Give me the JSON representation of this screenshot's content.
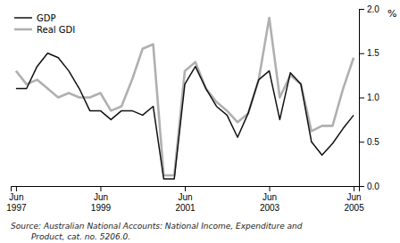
{
  "chart_data": {
    "type": "line",
    "y_label": "%",
    "annotations": [
      "Source: Australian National Accounts: National Income, Expenditure and",
      "        Product, cat. no. 5206.0."
    ],
    "categories": [
      "Jun\n1997",
      null,
      null,
      null,
      null,
      null,
      null,
      null,
      "Jun\n1999",
      null,
      null,
      null,
      null,
      null,
      null,
      null,
      "Jun\n2001",
      null,
      null,
      null,
      null,
      null,
      null,
      null,
      "Jun\n2003",
      null,
      null,
      null,
      null,
      null,
      null,
      null,
      "Jun\n2005"
    ],
    "series": [
      {
        "name": "GDP",
        "color": "#111111",
        "values": [
          1.1,
          1.1,
          1.35,
          1.5,
          1.45,
          1.3,
          1.1,
          0.85,
          0.85,
          0.75,
          0.85,
          0.85,
          0.8,
          0.9,
          0.08,
          0.08,
          1.15,
          1.35,
          1.1,
          0.9,
          0.8,
          0.55,
          0.82,
          1.2,
          1.3,
          0.75,
          1.28,
          1.15,
          0.5,
          0.35,
          0.48,
          0.65,
          0.8
        ]
      },
      {
        "name": "Real GDI",
        "color": "#b0b0b0",
        "values": [
          1.3,
          1.15,
          1.2,
          1.1,
          1.0,
          1.05,
          1.0,
          1.0,
          1.05,
          0.85,
          0.9,
          1.2,
          1.55,
          1.6,
          0.12,
          0.12,
          1.3,
          1.4,
          1.1,
          0.95,
          0.85,
          0.72,
          0.82,
          1.2,
          1.9,
          1.0,
          1.25,
          1.15,
          0.62,
          0.68,
          0.68,
          1.1,
          1.45
        ]
      }
    ],
    "ylim": [
      0.0,
      2.0
    ],
    "yticks": [
      {
        "value": 0.0,
        "label": "0.0"
      },
      0.5,
      {
        "value": 1.0,
        "label": "1.0"
      },
      1.5,
      {
        "value": 2.0,
        "label": "2.0"
      }
    ],
    "grid": false,
    "legend": "upper left"
  }
}
